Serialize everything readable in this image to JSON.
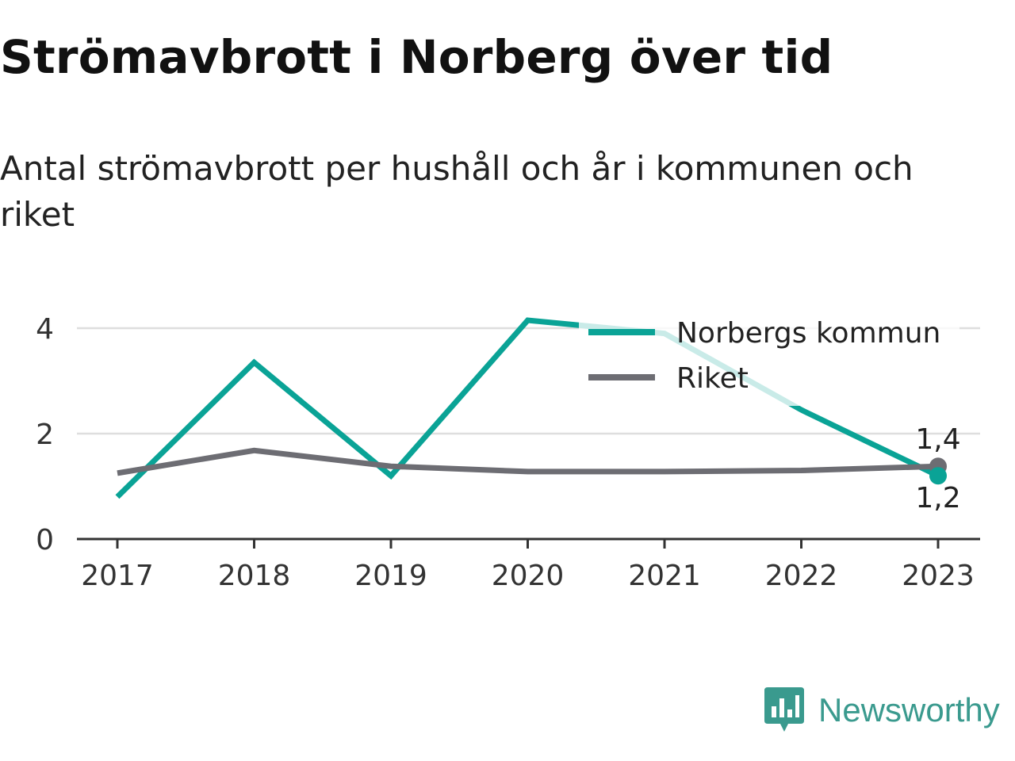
{
  "header": {
    "title": "Strömavbrott i Norberg över tid",
    "subtitle": "Antal strömavbrott per hushåll och år i kommunen och riket"
  },
  "brand": {
    "name": "Newsworthy",
    "icon": "newsworthy-logo-icon",
    "color": "#3a9a8e"
  },
  "chart_data": {
    "type": "line",
    "x": [
      "2017",
      "2018",
      "2019",
      "2020",
      "2021",
      "2022",
      "2023"
    ],
    "series": [
      {
        "name": "Norbergs kommun",
        "values": [
          0.8,
          3.35,
          1.2,
          4.15,
          3.9,
          2.45,
          1.2
        ],
        "color": "#0aa396",
        "end_label": "1,2"
      },
      {
        "name": "Riket",
        "values": [
          1.25,
          1.68,
          1.38,
          1.28,
          1.28,
          1.3,
          1.38
        ],
        "color": "#6d6d73",
        "end_label": "1,4"
      }
    ],
    "yticks": [
      0,
      2,
      4
    ],
    "ylim": [
      0,
      4.2
    ],
    "grid": true,
    "legend": "top-right",
    "xlabel": "",
    "ylabel": ""
  }
}
